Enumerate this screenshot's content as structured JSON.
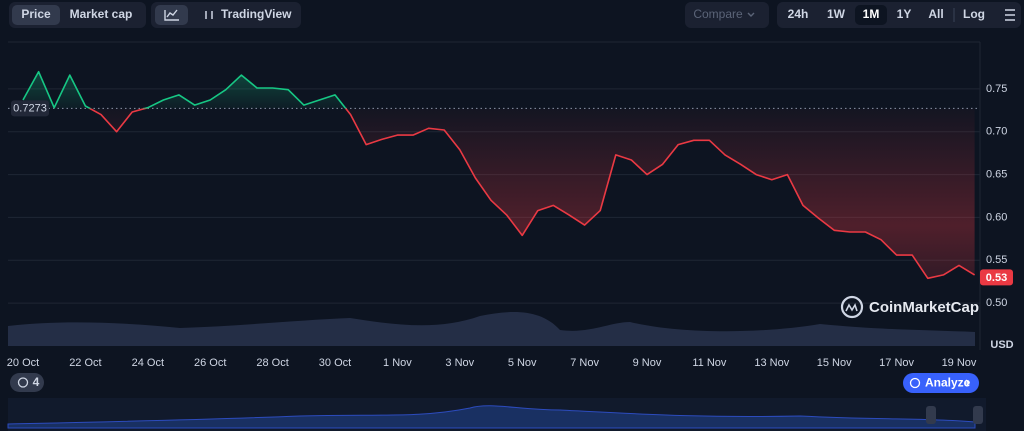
{
  "ui": {
    "tabs": [
      "Price",
      "Market cap"
    ],
    "tools": [
      "TradingView"
    ],
    "compare": "Compare",
    "ranges": [
      "24h",
      "1W",
      "1M",
      "1Y",
      "All"
    ],
    "log": "Log",
    "history_count": "4",
    "analyze": "Analyze",
    "watermark": "CoinMarketCap"
  },
  "chart_data": {
    "type": "line",
    "y_unit": "USD",
    "categories": [
      "20 Oct",
      null,
      null,
      null,
      "22 Oct",
      null,
      null,
      null,
      "24 Oct",
      null,
      null,
      null,
      "26 Oct",
      null,
      null,
      null,
      "28 Oct",
      null,
      null,
      null,
      "30 Oct",
      null,
      null,
      null,
      "1 Nov",
      null,
      null,
      null,
      "3 Nov",
      null,
      null,
      null,
      "5 Nov",
      null,
      null,
      null,
      "7 Nov",
      null,
      null,
      null,
      "9 Nov",
      null,
      null,
      null,
      "11 Nov",
      null,
      null,
      null,
      "13 Nov",
      null,
      null,
      null,
      "15 Nov",
      null,
      null,
      null,
      "17 Nov",
      null,
      null,
      null,
      "19 Nov",
      null
    ],
    "values": [
      0.737,
      0.77,
      0.728,
      0.766,
      0.73,
      0.72,
      0.7,
      0.723,
      0.728,
      0.737,
      0.743,
      0.731,
      0.737,
      0.749,
      0.766,
      0.751,
      0.751,
      0.749,
      0.731,
      0.737,
      0.743,
      0.72,
      0.685,
      0.691,
      0.696,
      0.696,
      0.704,
      0.702,
      0.679,
      0.646,
      0.62,
      0.603,
      0.579,
      0.608,
      0.614,
      0.603,
      0.591,
      0.608,
      0.673,
      0.667,
      0.65,
      0.662,
      0.685,
      0.69,
      0.69,
      0.673,
      0.662,
      0.65,
      0.644,
      0.65,
      0.614,
      0.599,
      0.585,
      0.583,
      0.583,
      0.574,
      0.556,
      0.556,
      0.529,
      0.533,
      0.544,
      0.533
    ],
    "reference_price": 0.7273,
    "current_price": 0.53,
    "up_color": "#16c784",
    "down_color": "#ea3943",
    "ylim": [
      0.45,
      0.8
    ],
    "yticks": [
      {
        "value": 0.5,
        "label": "0.50"
      },
      {
        "value": 0.55,
        "label": "0.55"
      },
      {
        "value": 0.6,
        "label": "0.60"
      },
      {
        "value": 0.65,
        "label": "0.65"
      },
      {
        "value": 0.7,
        "label": "0.70"
      },
      {
        "value": 0.75,
        "label": "0.75"
      }
    ],
    "grid": true
  }
}
